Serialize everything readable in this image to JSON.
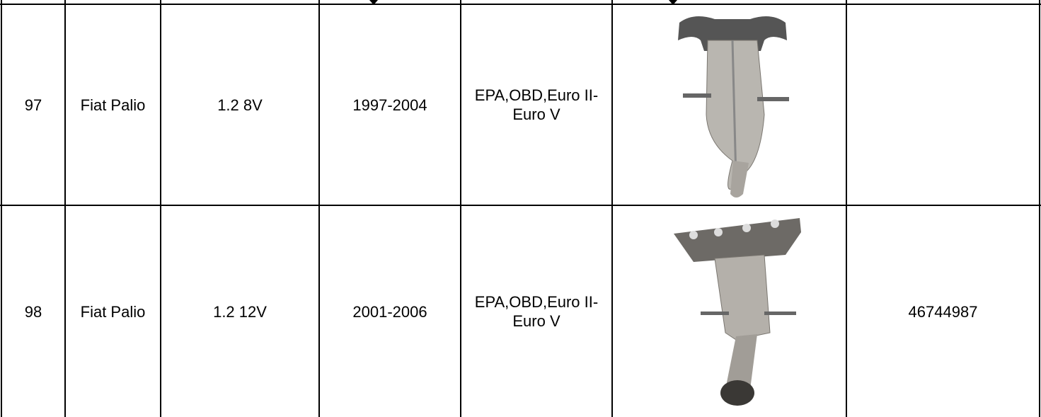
{
  "table": {
    "rows": [
      {
        "no": "97",
        "model": "Fiat Palio",
        "engine": "1.2 8V",
        "years": "1997-2004",
        "standard": "EPA,OBD,Euro II-Euro V"
      },
      {
        "no": "98",
        "model": "Fiat Palio",
        "engine": "1.2 12V",
        "years": "2001-2006",
        "standard": "EPA,OBD,Euro II-Euro V",
        "part_no": "46744987"
      }
    ]
  }
}
